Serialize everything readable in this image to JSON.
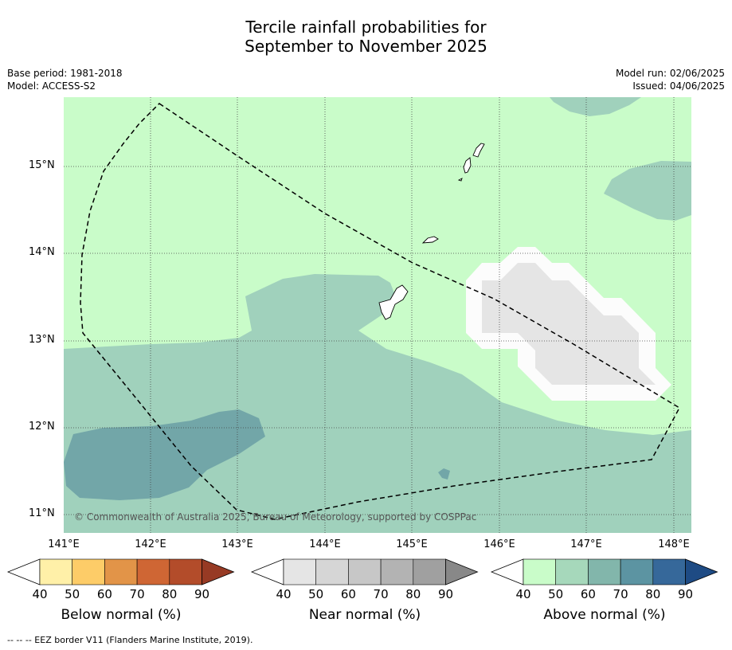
{
  "title_line1": "Tercile rainfall probabilities for",
  "title_line2": "September to November 2025",
  "meta": {
    "base_period": "Base period: 1981-2018",
    "model": "Model: ACCESS-S2",
    "model_run": "Model run: 02/06/2025",
    "issued": "Issued: 04/06/2025"
  },
  "map": {
    "lat_labels": [
      "15°N",
      "14°N",
      "13°N",
      "12°N",
      "11°N"
    ],
    "lon_labels": [
      "141°E",
      "142°E",
      "143°E",
      "144°E",
      "145°E",
      "146°E",
      "147°E",
      "148°E"
    ],
    "copyright": "© Commonwealth of Australia 2025, Bureau of Meteorology, supported by COSPPac"
  },
  "colorbars": [
    {
      "label": "Below normal (%)",
      "ticks": [
        "40",
        "50",
        "60",
        "70",
        "80",
        "90"
      ],
      "colors": [
        "#fff0a8",
        "#fdcc68",
        "#e29448",
        "#cf6634",
        "#b34c2a",
        "#973a24"
      ]
    },
    {
      "label": "Near normal (%)",
      "ticks": [
        "40",
        "50",
        "60",
        "70",
        "80",
        "90"
      ],
      "colors": [
        "#e5e5e5",
        "#d6d6d6",
        "#c7c7c7",
        "#b3b3b3",
        "#a0a0a0",
        "#888888"
      ]
    },
    {
      "label": "Above normal (%)",
      "ticks": [
        "40",
        "50",
        "60",
        "70",
        "80",
        "90"
      ],
      "colors": [
        "#c9fcc9",
        "#a6d8bb",
        "#82b6ab",
        "#5c94a2",
        "#36689a",
        "#1e4b84"
      ]
    }
  ],
  "legend": {
    "eez_line": "--  --  -- EEZ border V11 (Flanders Marine Institute, 2019)."
  }
}
